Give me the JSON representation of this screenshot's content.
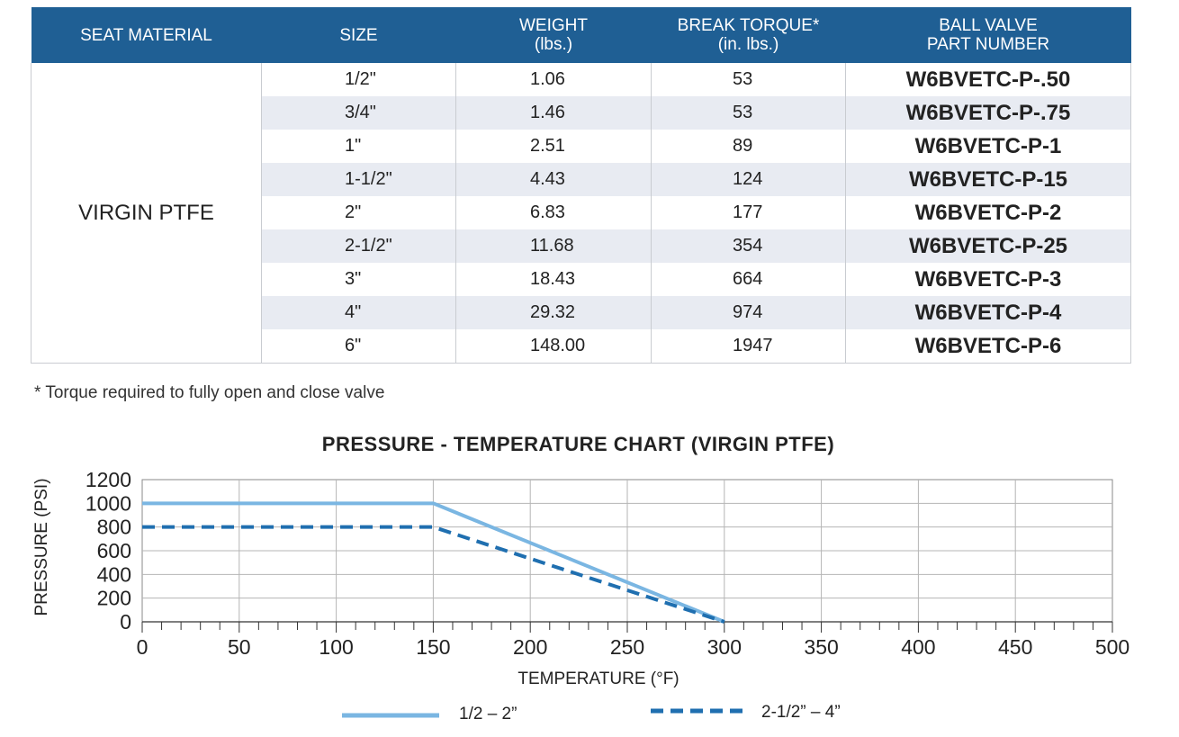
{
  "table": {
    "headers": {
      "seat_material": "SEAT MATERIAL",
      "size": "SIZE",
      "weight": "WEIGHT",
      "weight_unit": "(lbs.)",
      "torque": "BREAK TORQUE*",
      "torque_unit": "(in. lbs.)",
      "part": "BALL VALVE",
      "part_line2": "PART NUMBER"
    },
    "seat_material": "VIRGIN PTFE",
    "rows": [
      {
        "size": "1/2\"",
        "weight": "1.06",
        "torque": "53",
        "part": "W6BVETC-P-.50"
      },
      {
        "size": "3/4\"",
        "weight": "1.46",
        "torque": "53",
        "part": "W6BVETC-P-.75"
      },
      {
        "size": "1\"",
        "weight": "2.51",
        "torque": "89",
        "part": "W6BVETC-P-1"
      },
      {
        "size": "1-1/2\"",
        "weight": "4.43",
        "torque": "124",
        "part": "W6BVETC-P-15"
      },
      {
        "size": "2\"",
        "weight": "6.83",
        "torque": "177",
        "part": "W6BVETC-P-2"
      },
      {
        "size": "2-1/2\"",
        "weight": "11.68",
        "torque": "354",
        "part": "W6BVETC-P-25"
      },
      {
        "size": "3\"",
        "weight": "18.43",
        "torque": "664",
        "part": "W6BVETC-P-3"
      },
      {
        "size": "4\"",
        "weight": "29.32",
        "torque": "974",
        "part": "W6BVETC-P-4"
      },
      {
        "size": "6\"",
        "weight": "148.00",
        "torque": "1947",
        "part": "W6BVETC-P-6"
      }
    ],
    "header_color": "#1f5f94",
    "stripe_color": "#e8ebf2"
  },
  "footnote": "* Torque required to fully open and close valve",
  "chart_data": {
    "type": "line",
    "title": "PRESSURE - TEMPERATURE CHART (VIRGIN PTFE)",
    "xlabel": "TEMPERATURE (°F)",
    "ylabel": "PRESSURE (PSI)",
    "xlim": [
      0,
      500
    ],
    "ylim": [
      0,
      1200
    ],
    "xticks": [
      0,
      50,
      100,
      150,
      200,
      250,
      300,
      350,
      400,
      450,
      500
    ],
    "yticks": [
      0,
      200,
      400,
      600,
      800,
      1000,
      1200
    ],
    "grid": true,
    "legend_position": "bottom",
    "series": [
      {
        "name": "1/2 – 2”",
        "x": [
          0,
          150,
          300
        ],
        "y": [
          1000,
          1000,
          0
        ],
        "style": "solid",
        "color": "#7ab6e2"
      },
      {
        "name": "2-1/2” – 4”",
        "x": [
          0,
          150,
          300
        ],
        "y": [
          800,
          800,
          0
        ],
        "style": "dashed",
        "color": "#1f6fb0"
      }
    ]
  }
}
